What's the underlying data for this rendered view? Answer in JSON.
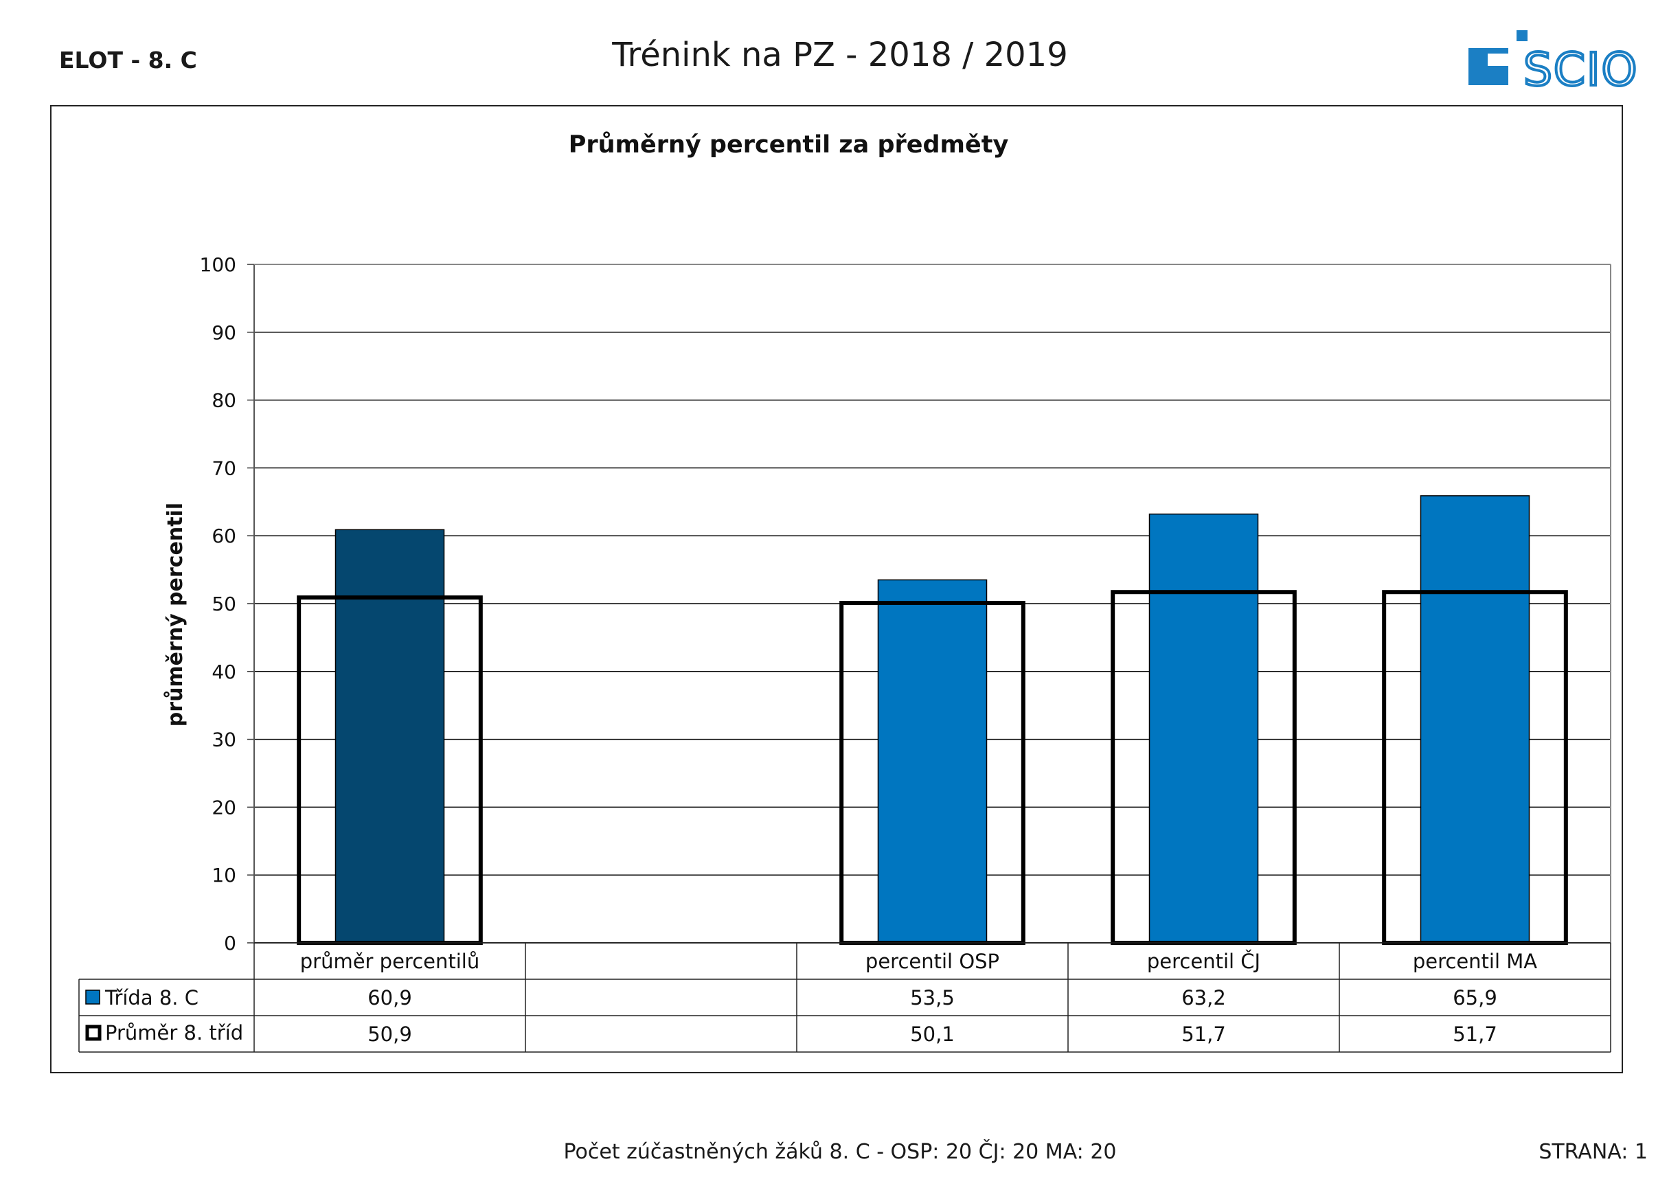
{
  "header": {
    "class_label": "ELOT - 8. C",
    "report_title": "Trénink na PZ - 2018 / 2019",
    "logo_text": "SCIO"
  },
  "footer": {
    "participants": "Počet zúčastněných žáků 8. C - OSP: 20   ČJ: 20   MA: 20",
    "page": "STRANA: 1"
  },
  "colors": {
    "class_bar": "#0076c0",
    "class_bar_highlight": "#05476f",
    "average_outline": "#000000",
    "logo_blue": "#1b7fc4"
  },
  "chart_data": {
    "type": "bar",
    "title": "Průměrný percentil za předměty",
    "ylabel": "průměrný percentil",
    "xlabel": "",
    "ylim": [
      0,
      100
    ],
    "yticks": [
      0,
      10,
      20,
      30,
      40,
      50,
      60,
      70,
      80,
      90,
      100
    ],
    "grid": true,
    "categories": [
      "průměr percentilů",
      "",
      "percentil OSP",
      "percentil ČJ",
      "percentil MA"
    ],
    "series": [
      {
        "name": "Třída 8. C",
        "values": [
          60.9,
          null,
          53.5,
          63.2,
          65.9
        ],
        "labels": [
          "60,9",
          "",
          "53,5",
          "63,2",
          "65,9"
        ]
      },
      {
        "name": "Průměr 8. tříd",
        "values": [
          50.9,
          null,
          50.1,
          51.7,
          51.7
        ],
        "labels": [
          "50,9",
          "",
          "50,1",
          "51,7",
          "51,7"
        ]
      }
    ]
  }
}
